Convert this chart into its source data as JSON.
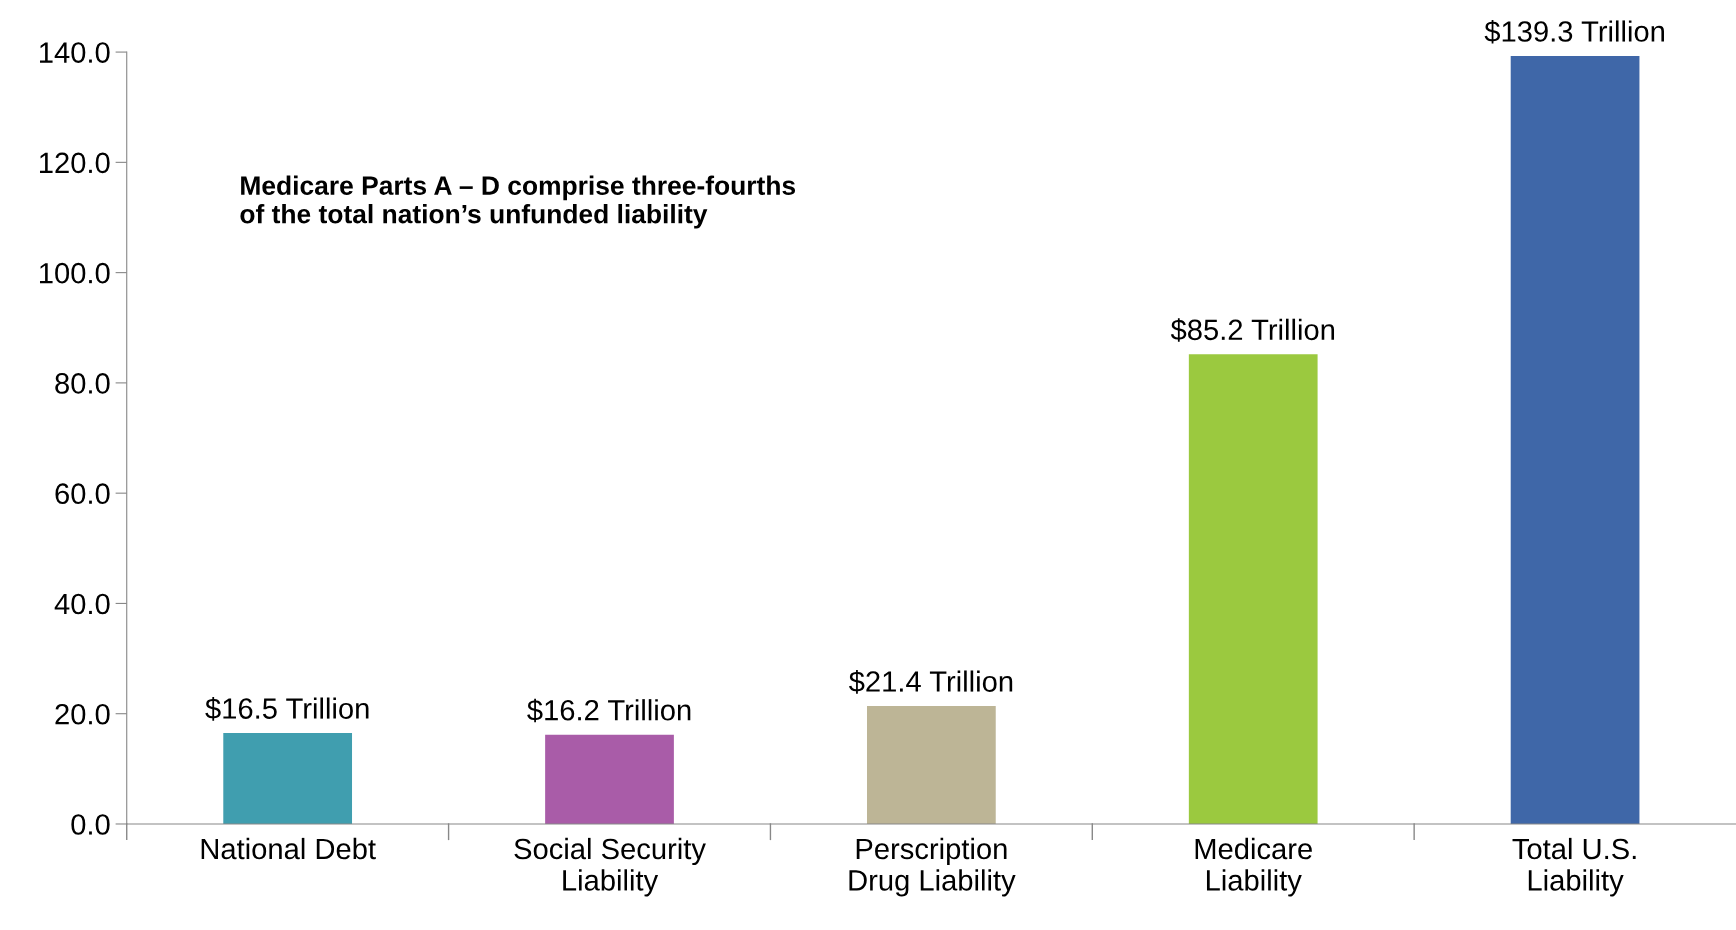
{
  "chart_data": {
    "type": "bar",
    "categories": [
      "National Debt",
      "Social Security\nLiability",
      "Perscription\nDrug Liability",
      "Medicare\nLiability",
      "Total U.S.\nLiability"
    ],
    "values": [
      16.5,
      16.2,
      21.4,
      85.2,
      139.3
    ],
    "colors": [
      "#409eaf",
      "#a95ca8",
      "#bdb596",
      "#9bc93f",
      "#3f67a8"
    ],
    "value_labels": [
      "$16.5 Trillion",
      "$16.2 Trillion",
      "$21.4 Trillion",
      "$85.2 Trillion",
      "$139.3 Trillion"
    ],
    "ylim": [
      0,
      140
    ],
    "yticks": [
      {
        "value": 0,
        "label": "0.0"
      },
      {
        "value": 20,
        "label": "20.0"
      },
      {
        "value": 40,
        "label": "40.0"
      },
      {
        "value": 60,
        "label": "60.0"
      },
      {
        "value": 80,
        "label": "80.0"
      },
      {
        "value": 100,
        "label": "100.0"
      },
      {
        "value": 120,
        "label": "120.0"
      },
      {
        "value": 140,
        "label": "140.0"
      }
    ],
    "annotations": [
      "Medicare Parts A – D comprise three-fourths\nof the total nation’s unfunded liability"
    ],
    "grid": false,
    "legend": false
  }
}
